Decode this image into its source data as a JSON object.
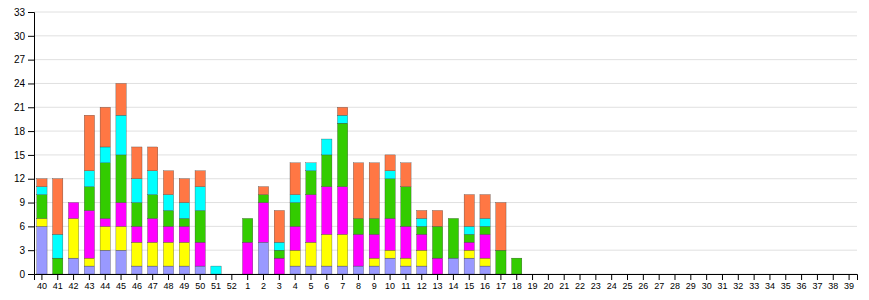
{
  "chart_data": {
    "type": "bar",
    "stacked": true,
    "grid": true,
    "categories": [
      "40",
      "41",
      "42",
      "43",
      "44",
      "45",
      "46",
      "47",
      "48",
      "49",
      "50",
      "51",
      "52",
      "1",
      "2",
      "3",
      "4",
      "5",
      "6",
      "7",
      "8",
      "9",
      "10",
      "11",
      "12",
      "13",
      "14",
      "15",
      "16",
      "17",
      "18",
      "19",
      "20",
      "21",
      "22",
      "23",
      "24",
      "25",
      "26",
      "27",
      "28",
      "29",
      "30",
      "31",
      "32",
      "33",
      "34",
      "35",
      "36",
      "37",
      "38",
      "39"
    ],
    "series": [
      {
        "color": "#9999FF",
        "values": [
          6,
          0,
          2,
          1,
          3,
          3,
          1,
          1,
          1,
          1,
          1,
          0,
          0,
          0,
          4,
          0,
          1,
          1,
          1,
          1,
          1,
          1,
          2,
          1,
          1,
          0,
          2,
          2,
          1,
          0,
          0,
          0,
          0,
          0,
          0,
          0,
          0,
          0,
          0,
          0,
          0,
          0,
          0,
          0,
          0,
          0,
          0,
          0,
          0,
          0,
          0,
          0
        ]
      },
      {
        "color": "#FFFF00",
        "values": [
          1,
          0,
          5,
          1,
          3,
          3,
          3,
          3,
          3,
          3,
          0,
          0,
          0,
          0,
          0,
          0,
          2,
          3,
          4,
          4,
          0,
          1,
          1,
          1,
          2,
          0,
          0,
          1,
          1,
          0,
          0,
          0,
          0,
          0,
          0,
          0,
          0,
          0,
          0,
          0,
          0,
          0,
          0,
          0,
          0,
          0,
          0,
          0,
          0,
          0,
          0,
          0
        ]
      },
      {
        "color": "#FF00FF",
        "values": [
          0,
          0,
          2,
          6,
          1,
          3,
          2,
          3,
          2,
          2,
          3,
          0,
          0,
          4,
          5,
          2,
          3,
          6,
          6,
          6,
          4,
          3,
          4,
          4,
          2,
          2,
          0,
          1,
          3,
          0,
          0,
          0,
          0,
          0,
          0,
          0,
          0,
          0,
          0,
          0,
          0,
          0,
          0,
          0,
          0,
          0,
          0,
          0,
          0,
          0,
          0,
          0
        ]
      },
      {
        "color": "#33CC00",
        "values": [
          3,
          2,
          0,
          3,
          7,
          6,
          3,
          3,
          2,
          1,
          4,
          0,
          0,
          3,
          1,
          1,
          3,
          3,
          4,
          8,
          2,
          2,
          5,
          5,
          1,
          4,
          5,
          1,
          1,
          3,
          2,
          0,
          0,
          0,
          0,
          0,
          0,
          0,
          0,
          0,
          0,
          0,
          0,
          0,
          0,
          0,
          0,
          0,
          0,
          0,
          0,
          0
        ]
      },
      {
        "color": "#00FFFF",
        "values": [
          1,
          3,
          0,
          2,
          2,
          5,
          3,
          3,
          2,
          2,
          3,
          1,
          0,
          0,
          0,
          1,
          1,
          1,
          2,
          1,
          0,
          0,
          1,
          0,
          1,
          0,
          0,
          1,
          1,
          0,
          0,
          0,
          0,
          0,
          0,
          0,
          0,
          0,
          0,
          0,
          0,
          0,
          0,
          0,
          0,
          0,
          0,
          0,
          0,
          0,
          0,
          0
        ]
      },
      {
        "color": "#FF7744",
        "values": [
          1,
          7,
          0,
          7,
          5,
          4,
          4,
          3,
          3,
          3,
          2,
          0,
          0,
          0,
          1,
          4,
          4,
          0,
          0,
          1,
          7,
          7,
          2,
          3,
          1,
          2,
          0,
          4,
          3,
          6,
          0,
          0,
          0,
          0,
          0,
          0,
          0,
          0,
          0,
          0,
          0,
          0,
          0,
          0,
          0,
          0,
          0,
          0,
          0,
          0,
          0,
          0
        ]
      }
    ],
    "ylim": [
      0,
      33
    ],
    "yticks": [
      0,
      3,
      6,
      9,
      12,
      15,
      18,
      21,
      24,
      27,
      30,
      33
    ]
  }
}
